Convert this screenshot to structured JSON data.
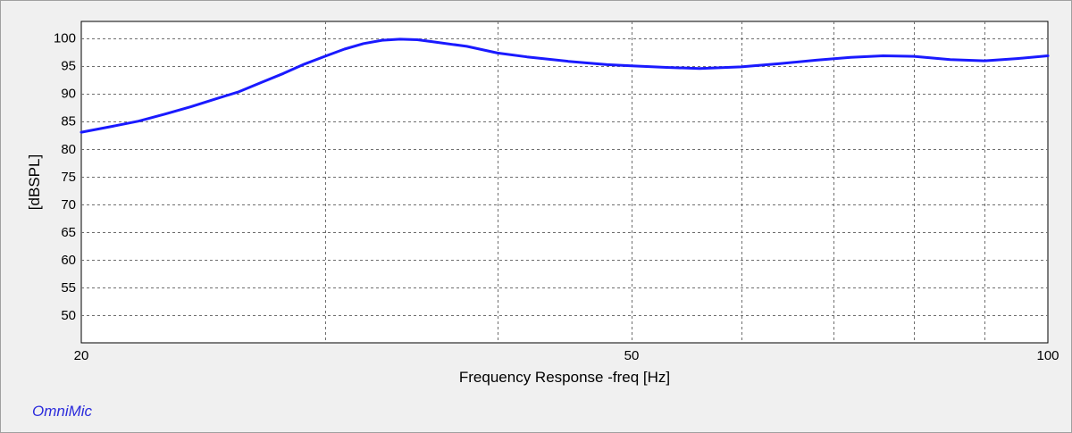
{
  "chart_data": {
    "type": "line",
    "xlabel": "Frequency Response -freq [Hz]",
    "ylabel": "[dBSPL]",
    "x_scale": "log",
    "xlim": [
      20,
      100
    ],
    "ylim": [
      45,
      103
    ],
    "x_tick_labels": [
      {
        "value": 20,
        "label": "20"
      },
      {
        "value": 50,
        "label": "50"
      },
      {
        "value": 100,
        "label": "100"
      }
    ],
    "x_minor_gridlines": [
      30,
      40,
      60,
      70,
      80,
      90
    ],
    "y_ticks": [
      50,
      55,
      60,
      65,
      70,
      75,
      80,
      85,
      90,
      95,
      100
    ],
    "grid": true,
    "series": [
      {
        "color": "#1a1aff",
        "points": [
          {
            "x": 20,
            "y": 83.0
          },
          {
            "x": 21,
            "y": 84.0
          },
          {
            "x": 22,
            "y": 85.0
          },
          {
            "x": 23,
            "y": 86.3
          },
          {
            "x": 24,
            "y": 87.6
          },
          {
            "x": 25,
            "y": 89.0
          },
          {
            "x": 26,
            "y": 90.3
          },
          {
            "x": 27,
            "y": 92.0
          },
          {
            "x": 28,
            "y": 93.6
          },
          {
            "x": 29,
            "y": 95.3
          },
          {
            "x": 30,
            "y": 96.7
          },
          {
            "x": 31,
            "y": 98.0
          },
          {
            "x": 32,
            "y": 99.0
          },
          {
            "x": 33,
            "y": 99.6
          },
          {
            "x": 34,
            "y": 99.8
          },
          {
            "x": 35,
            "y": 99.7
          },
          {
            "x": 36,
            "y": 99.3
          },
          {
            "x": 38,
            "y": 98.5
          },
          {
            "x": 40,
            "y": 97.3
          },
          {
            "x": 42,
            "y": 96.6
          },
          {
            "x": 45,
            "y": 95.8
          },
          {
            "x": 48,
            "y": 95.2
          },
          {
            "x": 50,
            "y": 95.0
          },
          {
            "x": 53,
            "y": 94.7
          },
          {
            "x": 56,
            "y": 94.5
          },
          {
            "x": 60,
            "y": 94.8
          },
          {
            "x": 64,
            "y": 95.4
          },
          {
            "x": 68,
            "y": 96.0
          },
          {
            "x": 72,
            "y": 96.5
          },
          {
            "x": 76,
            "y": 96.8
          },
          {
            "x": 80,
            "y": 96.7
          },
          {
            "x": 85,
            "y": 96.1
          },
          {
            "x": 90,
            "y": 95.9
          },
          {
            "x": 95,
            "y": 96.3
          },
          {
            "x": 100,
            "y": 96.8
          }
        ]
      }
    ]
  },
  "branding": {
    "label": "OmniMic"
  }
}
